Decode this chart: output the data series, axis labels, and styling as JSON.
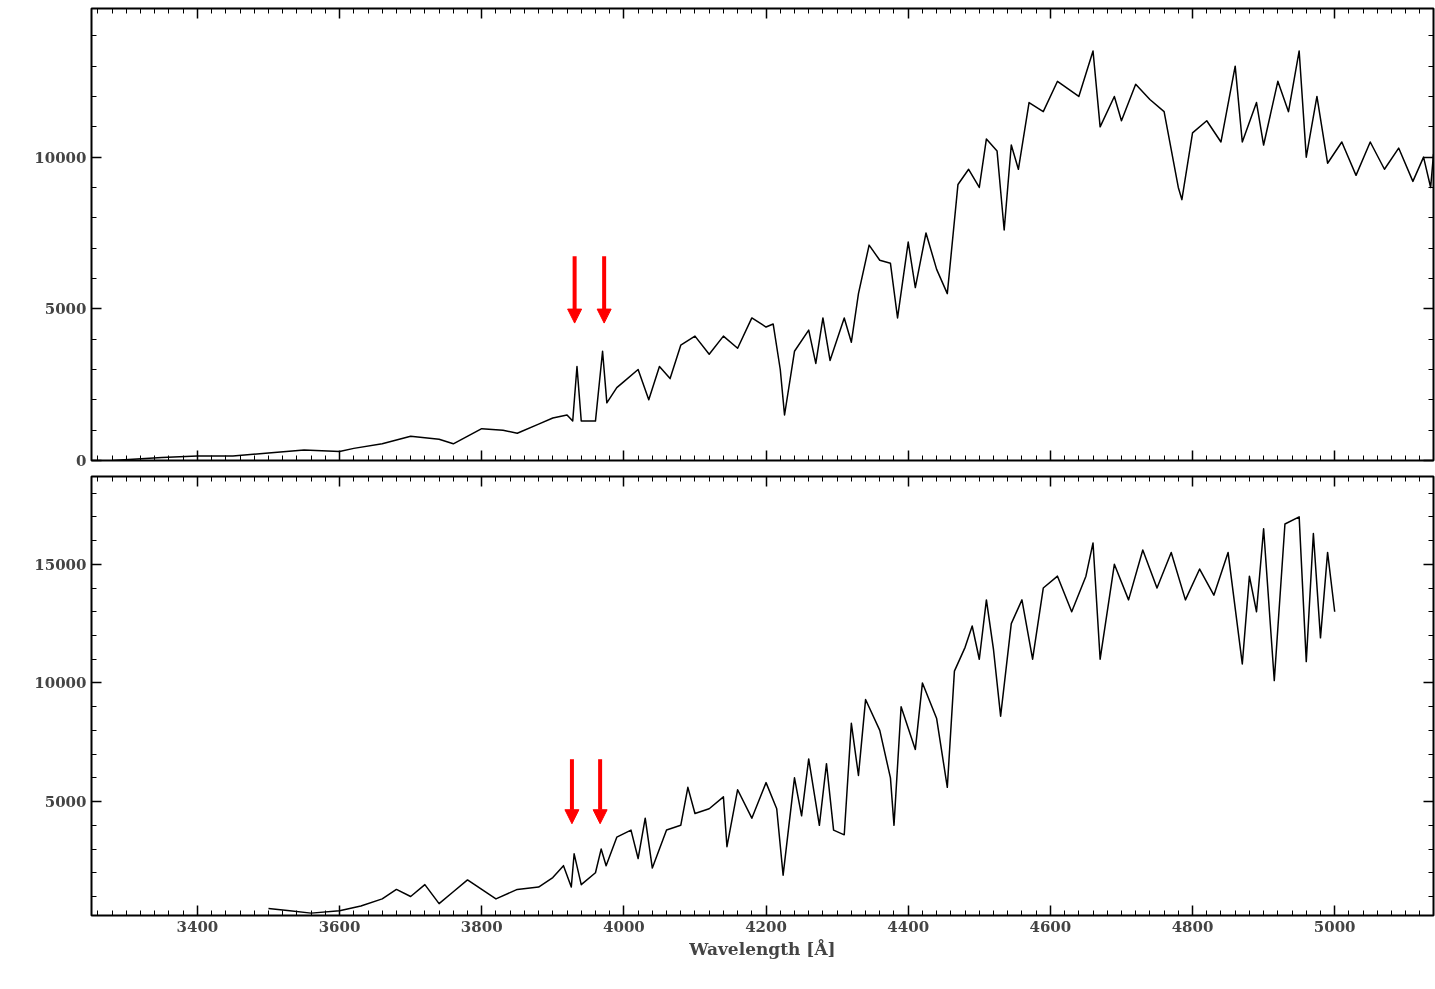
{
  "chart_data": [
    {
      "type": "line",
      "tick_labels": "y",
      "xlim": [
        3251,
        5139
      ],
      "ylim": [
        0,
        14900
      ],
      "xticks": [
        3400,
        3600,
        3800,
        4000,
        4200,
        4400,
        4600,
        4800,
        5000
      ],
      "yticks": [
        0,
        5000,
        10000
      ],
      "x": [
        3280,
        3350,
        3400,
        3450,
        3500,
        3550,
        3600,
        3620,
        3660,
        3700,
        3740,
        3760,
        3800,
        3830,
        3850,
        3880,
        3900,
        3920,
        3928,
        3934,
        3940,
        3960,
        3970,
        3976,
        3990,
        4000,
        4020,
        4035,
        4050,
        4065,
        4080,
        4100,
        4120,
        4140,
        4160,
        4180,
        4200,
        4210,
        4220,
        4226,
        4240,
        4260,
        4270,
        4280,
        4290,
        4310,
        4320,
        4330,
        4345,
        4360,
        4375,
        4385,
        4400,
        4410,
        4425,
        4440,
        4455,
        4470,
        4485,
        4500,
        4510,
        4525,
        4535,
        4545,
        4555,
        4570,
        4590,
        4610,
        4640,
        4660,
        4670,
        4690,
        4700,
        4720,
        4740,
        4760,
        4780,
        4785,
        4800,
        4820,
        4840,
        4860,
        4870,
        4890,
        4900,
        4920,
        4935,
        4950,
        4960,
        4975,
        4990,
        5010,
        5030,
        5050,
        5070,
        5090,
        5110,
        5125,
        5135,
        5139
      ],
      "series": [
        {
          "color": "#000000",
          "values": [
            0,
            100,
            150,
            150,
            250,
            350,
            300,
            400,
            550,
            800,
            700,
            550,
            1050,
            1000,
            900,
            1200,
            1400,
            1500,
            1300,
            3100,
            1300,
            1300,
            3600,
            1900,
            2400,
            2600,
            3000,
            2000,
            3100,
            2700,
            3800,
            4100,
            3500,
            4100,
            3700,
            4700,
            4400,
            4500,
            3000,
            1500,
            3600,
            4300,
            3200,
            4700,
            3300,
            4700,
            3900,
            5500,
            7100,
            6600,
            6500,
            4700,
            7200,
            5700,
            7500,
            6300,
            5500,
            9100,
            9600,
            9000,
            10600,
            10200,
            7600,
            10400,
            9600,
            11800,
            11500,
            12500,
            12000,
            13500,
            11000,
            12000,
            11200,
            12400,
            11900,
            11500,
            9000,
            8600,
            10800,
            11200,
            10500,
            13000,
            10500,
            11800,
            10400,
            12500,
            11500,
            13500,
            10000,
            12000,
            9800,
            10500,
            9400,
            10500,
            9600,
            10300,
            9200,
            10000,
            9000,
            10100
          ]
        }
      ]
    },
    {
      "type": "line",
      "xlabel": "Wavelength [Å]",
      "xlim": [
        3251,
        5139
      ],
      "ylim": [
        200,
        18700
      ],
      "xticks": [
        3400,
        3600,
        3800,
        4000,
        4200,
        4400,
        4600,
        4800,
        5000
      ],
      "yticks": [
        5000,
        10000,
        15000
      ],
      "x": [
        3500,
        3530,
        3560,
        3600,
        3630,
        3660,
        3680,
        3700,
        3720,
        3740,
        3760,
        3780,
        3800,
        3820,
        3850,
        3880,
        3900,
        3915,
        3926,
        3930,
        3940,
        3960,
        3968,
        3975,
        3990,
        4010,
        4020,
        4030,
        4040,
        4060,
        4080,
        4090,
        4100,
        4120,
        4140,
        4145,
        4160,
        4180,
        4200,
        4215,
        4224,
        4240,
        4250,
        4260,
        4275,
        4285,
        4295,
        4310,
        4320,
        4330,
        4340,
        4360,
        4375,
        4380,
        4390,
        4410,
        4420,
        4440,
        4455,
        4465,
        4480,
        4490,
        4500,
        4510,
        4520,
        4530,
        4545,
        4560,
        4575,
        4590,
        4610,
        4630,
        4650,
        4660,
        4670,
        4690,
        4710,
        4730,
        4750,
        4770,
        4790,
        4810,
        4830,
        4850,
        4870,
        4880,
        4890,
        4900,
        4915,
        4930,
        4950,
        4960,
        4970,
        4980,
        4990,
        5000
      ],
      "series": [
        {
          "color": "#000000",
          "values": [
            500,
            400,
            300,
            400,
            600,
            900,
            1300,
            1000,
            1500,
            700,
            1200,
            1700,
            1300,
            900,
            1300,
            1400,
            1800,
            2300,
            1400,
            2800,
            1500,
            2000,
            3000,
            2300,
            3500,
            3800,
            2600,
            4300,
            2200,
            3800,
            4000,
            5600,
            4500,
            4700,
            5200,
            3100,
            5500,
            4300,
            5800,
            4700,
            1900,
            6000,
            4400,
            6800,
            4000,
            6600,
            3800,
            3600,
            8300,
            6100,
            9300,
            8000,
            6000,
            4000,
            9000,
            7200,
            10000,
            8500,
            5600,
            10500,
            11500,
            12400,
            11000,
            13500,
            11400,
            8600,
            12500,
            13500,
            11000,
            14000,
            14500,
            13000,
            14500,
            15900,
            11000,
            15000,
            13500,
            15600,
            14000,
            15500,
            13500,
            14800,
            13700,
            15500,
            10800,
            14500,
            13000,
            16500,
            10100,
            16700,
            17000,
            10900,
            16300,
            11900,
            15500,
            13000
          ]
        }
      ]
    }
  ]
}
